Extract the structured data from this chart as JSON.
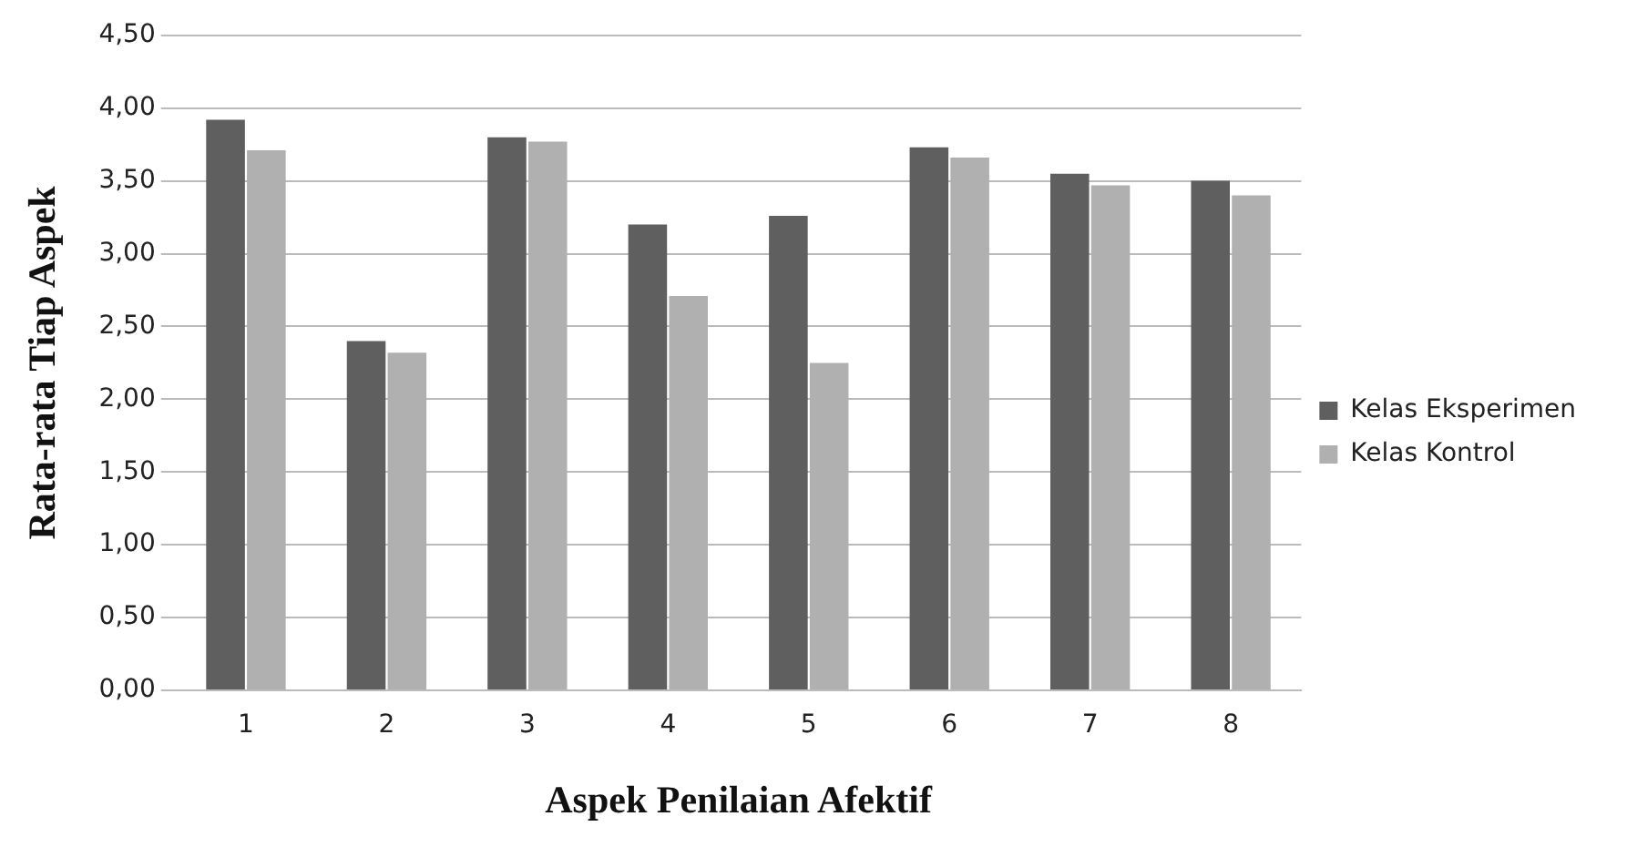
{
  "chart_data": {
    "type": "bar",
    "xlabel": "Aspek Penilaian Afektif",
    "ylabel": "Rata-rata Tiap Aspek",
    "categories": [
      "1",
      "2",
      "3",
      "4",
      "5",
      "6",
      "7",
      "8"
    ],
    "series": [
      {
        "name": "Kelas Eksperimen",
        "color": "#5f5f5f",
        "values": [
          3.92,
          2.4,
          3.8,
          3.2,
          3.26,
          3.73,
          3.55,
          3.5
        ]
      },
      {
        "name": "Kelas Kontrol",
        "color": "#b0b0b0",
        "values": [
          3.71,
          2.32,
          3.77,
          2.71,
          2.25,
          3.66,
          3.47,
          3.4
        ]
      }
    ],
    "ylim": [
      0,
      4.5
    ],
    "yticks": [
      {
        "value": 0,
        "label": "0,00"
      },
      {
        "value": 0.5,
        "label": "0,50"
      },
      {
        "value": 1,
        "label": "1,00"
      },
      {
        "value": 1.5,
        "label": "1,50"
      },
      {
        "value": 2,
        "label": "2,00"
      },
      {
        "value": 2.5,
        "label": "2,50"
      },
      {
        "value": 3,
        "label": "3,00"
      },
      {
        "value": 3.5,
        "label": "3,50"
      },
      {
        "value": 4,
        "label": "4,00"
      },
      {
        "value": 4.5,
        "label": "4,50"
      }
    ],
    "grid": "y",
    "legend": "right"
  }
}
